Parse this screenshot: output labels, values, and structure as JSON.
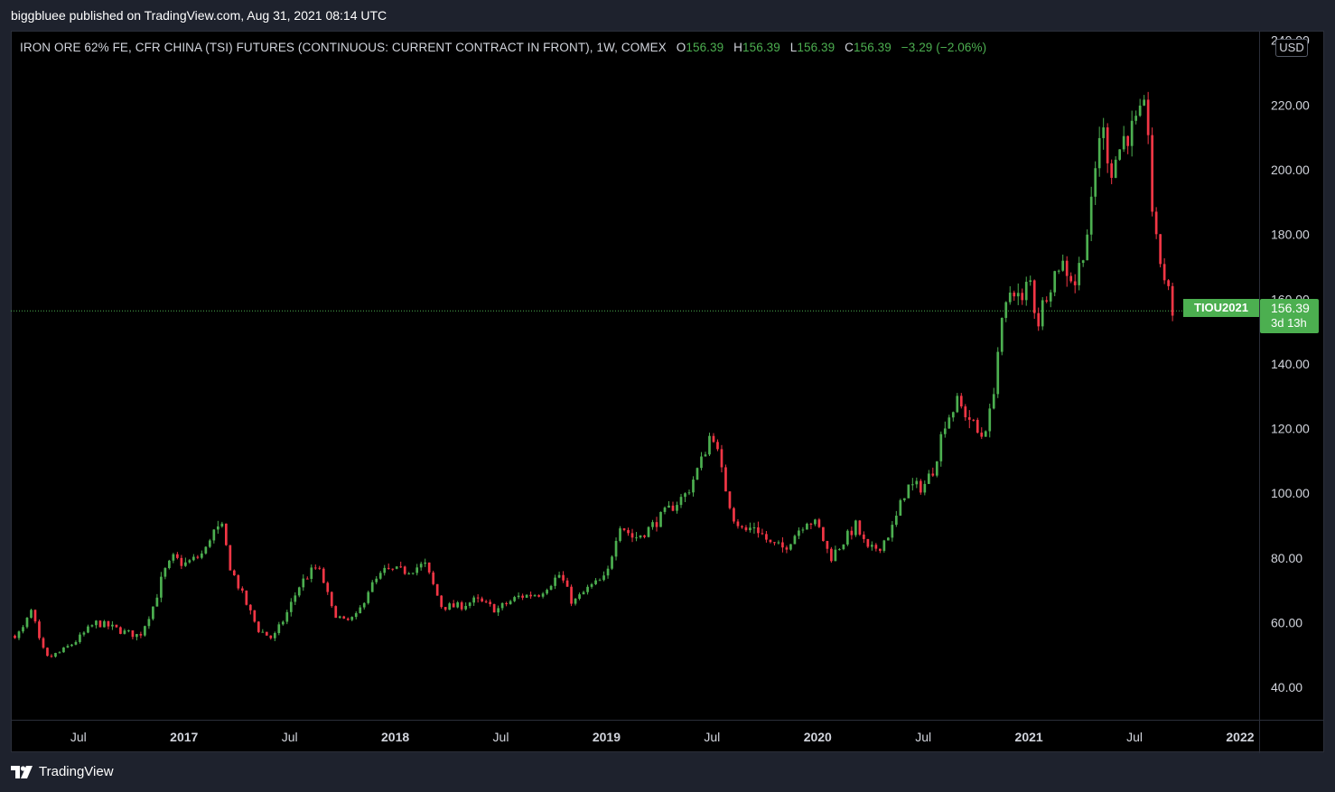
{
  "attribution": "biggbluee published on TradingView.com, Aug 31, 2021 08:14 UTC",
  "legend": {
    "title": "IRON ORE 62% FE, CFR CHINA (TSI) FUTURES (CONTINUOUS: CURRENT CONTRACT IN FRONT), 1W, COMEX",
    "o_label": "O",
    "o_value": "156.39",
    "h_label": "H",
    "h_value": "156.39",
    "l_label": "L",
    "l_value": "156.39",
    "c_label": "C",
    "c_value": "156.39",
    "change": "−3.29 (−2.06%)"
  },
  "currency": "USD",
  "last_price": {
    "symbol": "TIOU2021",
    "price": "156.39",
    "countdown": "3d 13h"
  },
  "brand": {
    "name": "TradingView",
    "icon": "tradingview-logo-icon"
  },
  "colors": {
    "up": "#4caf50",
    "down": "#f23645",
    "background": "#000000",
    "text": "#d1d4dc"
  },
  "chart_data": {
    "type": "candlestick",
    "interval": "1W",
    "yaxis": {
      "ticks": [
        "40.00",
        "60.00",
        "80.00",
        "100.00",
        "120.00",
        "140.00",
        "160.00",
        "180.00",
        "200.00",
        "220.00",
        "240.00"
      ],
      "ylim": [
        30,
        243
      ],
      "side": "right"
    },
    "xaxis": {
      "ticks": [
        {
          "label": "Jul",
          "t": 2016.5,
          "bold": false
        },
        {
          "label": "2017",
          "t": 2017.0,
          "bold": true
        },
        {
          "label": "Jul",
          "t": 2017.5,
          "bold": false
        },
        {
          "label": "2018",
          "t": 2018.0,
          "bold": true
        },
        {
          "label": "Jul",
          "t": 2018.5,
          "bold": false
        },
        {
          "label": "2019",
          "t": 2019.0,
          "bold": true
        },
        {
          "label": "Jul",
          "t": 2019.5,
          "bold": false
        },
        {
          "label": "2020",
          "t": 2020.0,
          "bold": true
        },
        {
          "label": "Jul",
          "t": 2020.5,
          "bold": false
        },
        {
          "label": "2021",
          "t": 2021.0,
          "bold": true
        },
        {
          "label": "Jul",
          "t": 2021.5,
          "bold": false
        },
        {
          "label": "2022",
          "t": 2022.0,
          "bold": true
        }
      ],
      "xlim": [
        2016.18,
        2022.09
      ]
    },
    "last_price_line": 156.39,
    "close_anchors": [
      [
        2016.18,
        56
      ],
      [
        2016.23,
        57
      ],
      [
        2016.28,
        64
      ],
      [
        2016.31,
        55
      ],
      [
        2016.35,
        49
      ],
      [
        2016.42,
        51
      ],
      [
        2016.5,
        55
      ],
      [
        2016.58,
        60
      ],
      [
        2016.64,
        59
      ],
      [
        2016.72,
        57
      ],
      [
        2016.79,
        56
      ],
      [
        2016.86,
        66
      ],
      [
        2016.9,
        75
      ],
      [
        2016.95,
        80
      ],
      [
        2017.0,
        78
      ],
      [
        2017.06,
        80
      ],
      [
        2017.1,
        82
      ],
      [
        2017.13,
        88
      ],
      [
        2017.18,
        89
      ],
      [
        2017.22,
        77
      ],
      [
        2017.28,
        68
      ],
      [
        2017.35,
        58
      ],
      [
        2017.42,
        55
      ],
      [
        2017.48,
        62
      ],
      [
        2017.55,
        72
      ],
      [
        2017.62,
        77
      ],
      [
        2017.65,
        75
      ],
      [
        2017.7,
        64
      ],
      [
        2017.76,
        60
      ],
      [
        2017.82,
        62
      ],
      [
        2017.87,
        70
      ],
      [
        2017.95,
        76
      ],
      [
        2018.05,
        76
      ],
      [
        2018.14,
        78
      ],
      [
        2018.22,
        65
      ],
      [
        2018.3,
        65
      ],
      [
        2018.38,
        67
      ],
      [
        2018.48,
        64
      ],
      [
        2018.58,
        68
      ],
      [
        2018.68,
        69
      ],
      [
        2018.78,
        75
      ],
      [
        2018.84,
        66
      ],
      [
        2018.92,
        71
      ],
      [
        2019.0,
        74
      ],
      [
        2019.06,
        91
      ],
      [
        2019.13,
        86
      ],
      [
        2019.2,
        89
      ],
      [
        2019.28,
        94
      ],
      [
        2019.38,
        100
      ],
      [
        2019.45,
        110
      ],
      [
        2019.5,
        120
      ],
      [
        2019.55,
        105
      ],
      [
        2019.6,
        93
      ],
      [
        2019.65,
        88
      ],
      [
        2019.7,
        90
      ],
      [
        2019.78,
        84
      ],
      [
        2019.84,
        83
      ],
      [
        2019.9,
        88
      ],
      [
        2019.95,
        92
      ],
      [
        2020.0,
        90
      ],
      [
        2020.06,
        80
      ],
      [
        2020.12,
        85
      ],
      [
        2020.18,
        90
      ],
      [
        2020.24,
        82
      ],
      [
        2020.3,
        84
      ],
      [
        2020.36,
        90
      ],
      [
        2020.42,
        102
      ],
      [
        2020.5,
        102
      ],
      [
        2020.55,
        108
      ],
      [
        2020.6,
        122
      ],
      [
        2020.66,
        128
      ],
      [
        2020.72,
        123
      ],
      [
        2020.77,
        117
      ],
      [
        2020.82,
        125
      ],
      [
        2020.86,
        148
      ],
      [
        2020.92,
        165
      ],
      [
        2020.97,
        158
      ],
      [
        2021.0,
        168
      ],
      [
        2021.04,
        152
      ],
      [
        2021.08,
        162
      ],
      [
        2021.15,
        172
      ],
      [
        2021.22,
        165
      ],
      [
        2021.29,
        185
      ],
      [
        2021.34,
        215
      ],
      [
        2021.39,
        200
      ],
      [
        2021.45,
        210
      ],
      [
        2021.5,
        213
      ],
      [
        2021.56,
        219
      ],
      [
        2021.59,
        180
      ],
      [
        2021.63,
        170
      ],
      [
        2021.67,
        159
      ],
      [
        2021.68,
        156.39
      ]
    ]
  }
}
